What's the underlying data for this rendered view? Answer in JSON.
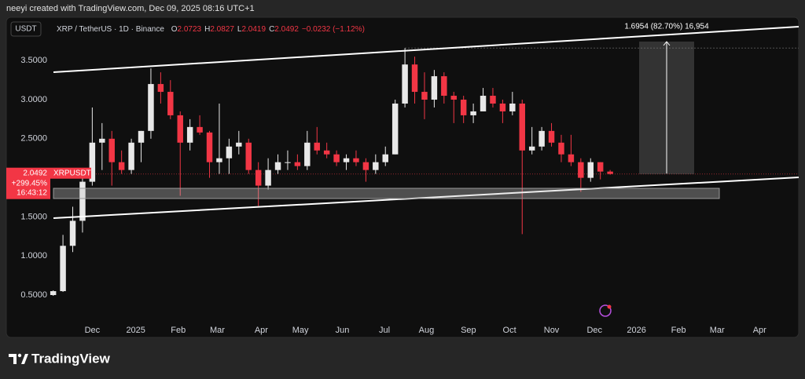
{
  "header": {
    "credit": "neeyi created with TradingView.com, Dec 09, 2025 08:16 UTC+1"
  },
  "toolbar": {
    "currency": "USDT"
  },
  "footer": {
    "brand": "TradingView"
  },
  "chart_data": {
    "type": "candlestick",
    "title": "XRP / TetherUS · 1D · Binance",
    "ohlc_legend": [
      {
        "key": "O",
        "value": "2.0723"
      },
      {
        "key": "H",
        "value": "2.0827"
      },
      {
        "key": "L",
        "value": "2.0419"
      },
      {
        "key": "C",
        "value": "2.0492"
      }
    ],
    "change": "−0.0232 (−1.12%)",
    "price_tag": {
      "price": "2.0492",
      "symbol": "XRPUSDT",
      "change": "+299.45%",
      "countdown": "16:43:12"
    },
    "annotation": "1.6954 (82.70%) 16,954",
    "up_color": "#e8e8e8",
    "down_color": "#f23645",
    "x": [
      0,
      1,
      2,
      3,
      4,
      5,
      6,
      7,
      8,
      9,
      10,
      11,
      12,
      13,
      14,
      15,
      16,
      17,
      18,
      19,
      20,
      21,
      22,
      23,
      24,
      25,
      26,
      27,
      28,
      29,
      30,
      31,
      32,
      33,
      34,
      35,
      36,
      37,
      38,
      39,
      40,
      41,
      42,
      43,
      44,
      45,
      46,
      47,
      48,
      49,
      50,
      51,
      52,
      53,
      54,
      55,
      56,
      57
    ],
    "open": [
      0.5,
      0.55,
      1.13,
      1.45,
      1.95,
      2.45,
      2.5,
      2.2,
      2.1,
      2.45,
      2.6,
      3.2,
      3.1,
      2.8,
      2.45,
      2.65,
      2.58,
      2.2,
      2.25,
      2.4,
      2.45,
      2.1,
      1.9,
      2.1,
      2.2,
      2.2,
      2.15,
      2.45,
      2.35,
      2.3,
      2.2,
      2.25,
      2.2,
      2.1,
      2.2,
      2.3,
      2.95,
      3.45,
      3.1,
      3.0,
      3.3,
      3.05,
      3.0,
      2.8,
      2.85,
      3.05,
      2.95,
      2.85,
      2.95,
      2.35,
      2.4,
      2.6,
      2.45,
      2.3,
      2.2,
      2.0,
      2.2,
      2.08
    ],
    "high": [
      0.56,
      1.27,
      1.63,
      2.0,
      2.9,
      2.7,
      2.6,
      2.35,
      2.5,
      2.6,
      3.4,
      3.35,
      3.25,
      2.85,
      2.75,
      2.8,
      2.6,
      2.95,
      2.5,
      2.6,
      2.5,
      2.2,
      2.25,
      2.3,
      2.35,
      2.3,
      2.6,
      2.65,
      2.45,
      2.35,
      2.3,
      2.35,
      2.25,
      2.3,
      2.4,
      3.0,
      3.66,
      3.55,
      3.35,
      3.38,
      3.35,
      3.1,
      3.05,
      2.95,
      3.15,
      3.15,
      3.0,
      3.1,
      3.0,
      2.65,
      2.65,
      2.7,
      2.55,
      2.55,
      2.25,
      2.25,
      2.2,
      2.1
    ],
    "low": [
      0.49,
      0.54,
      1.05,
      1.3,
      1.9,
      2.1,
      1.9,
      2.05,
      2.05,
      2.2,
      2.5,
      2.95,
      2.75,
      1.77,
      2.35,
      2.55,
      2.0,
      2.05,
      2.05,
      2.3,
      2.05,
      1.64,
      1.85,
      2.05,
      2.1,
      2.1,
      2.1,
      2.3,
      2.25,
      2.15,
      2.1,
      2.15,
      1.95,
      2.05,
      2.15,
      2.3,
      2.9,
      2.95,
      2.75,
      2.9,
      2.95,
      2.7,
      2.7,
      2.7,
      2.85,
      2.9,
      2.7,
      2.8,
      1.28,
      2.3,
      2.35,
      2.4,
      2.2,
      2.15,
      1.82,
      1.95,
      1.98,
      2.04
    ],
    "close": [
      0.55,
      1.13,
      1.45,
      1.95,
      2.45,
      2.5,
      2.2,
      2.1,
      2.45,
      2.6,
      3.2,
      3.1,
      2.8,
      2.45,
      2.65,
      2.58,
      2.2,
      2.25,
      2.4,
      2.45,
      2.1,
      1.9,
      2.1,
      2.2,
      2.2,
      2.15,
      2.45,
      2.35,
      2.3,
      2.2,
      2.25,
      2.2,
      2.1,
      2.2,
      2.3,
      2.95,
      3.45,
      3.1,
      3.0,
      3.3,
      3.05,
      3.0,
      2.8,
      2.85,
      3.05,
      2.95,
      2.85,
      2.95,
      2.35,
      2.4,
      2.6,
      2.45,
      2.3,
      2.2,
      2.0,
      2.2,
      2.08,
      2.0492
    ],
    "xlim": [
      -4.8,
      76.3
    ],
    "xticks": [
      {
        "value": 4.0,
        "label": "Dec"
      },
      {
        "value": 8.45,
        "label": "2025"
      },
      {
        "value": 12.8,
        "label": "Feb"
      },
      {
        "value": 16.8,
        "label": "Mar"
      },
      {
        "value": 21.3,
        "label": "Apr"
      },
      {
        "value": 25.3,
        "label": "May"
      },
      {
        "value": 29.6,
        "label": "Jun"
      },
      {
        "value": 33.9,
        "label": "Jul"
      },
      {
        "value": 38.2,
        "label": "Aug"
      },
      {
        "value": 42.5,
        "label": "Sep"
      },
      {
        "value": 46.7,
        "label": "Oct"
      },
      {
        "value": 51.0,
        "label": "Nov"
      },
      {
        "value": 55.4,
        "label": "Dec"
      },
      {
        "value": 59.7,
        "label": "2026"
      },
      {
        "value": 64.0,
        "label": "Feb"
      },
      {
        "value": 67.95,
        "label": "Mar"
      },
      {
        "value": 72.3,
        "label": "Apr"
      }
    ],
    "ylim": [
      0.2,
      4.0
    ],
    "yticks": [
      {
        "value": 0.5,
        "label": "0.5000"
      },
      {
        "value": 1.0,
        "label": "1.0000"
      },
      {
        "value": 1.5,
        "label": "1.5000"
      },
      {
        "value": 2.5,
        "label": "2.5000"
      },
      {
        "value": 3.0,
        "label": "3.0000"
      },
      {
        "value": 3.5,
        "label": "3.5000"
      }
    ]
  }
}
